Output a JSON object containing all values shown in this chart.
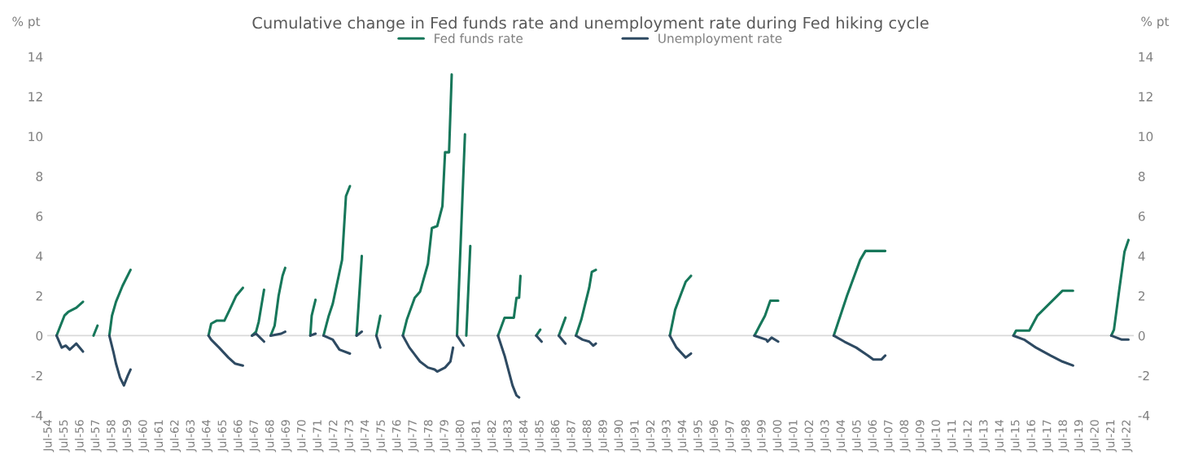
{
  "chart_data": {
    "type": "line",
    "title": "Cumulative change in Fed funds rate and unemployment rate during Fed hiking cycle",
    "ylabel": "% pt",
    "y2label": "% pt",
    "ylim": [
      -4,
      14
    ],
    "yticks": [
      -4,
      -2,
      0,
      2,
      4,
      6,
      8,
      10,
      12,
      14
    ],
    "y2lim": [
      -4,
      14
    ],
    "y2ticks": [
      -4,
      -2,
      0,
      2,
      4,
      6,
      8,
      10,
      12,
      14
    ],
    "xlim": [
      "1954-06",
      "2022-12"
    ],
    "xticks": [
      {
        "value": "1954-07",
        "label": "Jul-54"
      },
      {
        "value": "1955-07",
        "label": "Jul-55"
      },
      {
        "value": "1956-07",
        "label": "Jul-56"
      },
      {
        "value": "1957-07",
        "label": "Jul-57"
      },
      {
        "value": "1958-07",
        "label": "Jul-58"
      },
      {
        "value": "1959-07",
        "label": "Jul-59"
      },
      {
        "value": "1960-07",
        "label": "Jul-60"
      },
      {
        "value": "1961-07",
        "label": "Jul-61"
      },
      {
        "value": "1962-07",
        "label": "Jul-62"
      },
      {
        "value": "1963-07",
        "label": "Jul-63"
      },
      {
        "value": "1964-07",
        "label": "Jul-64"
      },
      {
        "value": "1965-07",
        "label": "Jul-65"
      },
      {
        "value": "1966-07",
        "label": "Jul-66"
      },
      {
        "value": "1967-07",
        "label": "Jul-67"
      },
      {
        "value": "1968-07",
        "label": "Jul-68"
      },
      {
        "value": "1969-07",
        "label": "Jul-69"
      },
      {
        "value": "1970-07",
        "label": "Jul-70"
      },
      {
        "value": "1971-07",
        "label": "Jul-71"
      },
      {
        "value": "1972-07",
        "label": "Jul-72"
      },
      {
        "value": "1973-07",
        "label": "Jul-73"
      },
      {
        "value": "1974-07",
        "label": "Jul-74"
      },
      {
        "value": "1975-07",
        "label": "Jul-75"
      },
      {
        "value": "1976-07",
        "label": "Jul-76"
      },
      {
        "value": "1977-07",
        "label": "Jul-77"
      },
      {
        "value": "1978-07",
        "label": "Jul-78"
      },
      {
        "value": "1979-07",
        "label": "Jul-79"
      },
      {
        "value": "1980-07",
        "label": "Jul-80"
      },
      {
        "value": "1981-07",
        "label": "Jul-81"
      },
      {
        "value": "1982-07",
        "label": "Jul-82"
      },
      {
        "value": "1983-07",
        "label": "Jul-83"
      },
      {
        "value": "1984-07",
        "label": "Jul-84"
      },
      {
        "value": "1985-07",
        "label": "Jul-85"
      },
      {
        "value": "1986-07",
        "label": "Jul-86"
      },
      {
        "value": "1987-07",
        "label": "Jul-87"
      },
      {
        "value": "1988-07",
        "label": "Jul-88"
      },
      {
        "value": "1989-07",
        "label": "Jul-89"
      },
      {
        "value": "1990-07",
        "label": "Jul-90"
      },
      {
        "value": "1991-07",
        "label": "Jul-91"
      },
      {
        "value": "1992-07",
        "label": "Jul-92"
      },
      {
        "value": "1993-07",
        "label": "Jul-93"
      },
      {
        "value": "1994-07",
        "label": "Jul-94"
      },
      {
        "value": "1995-07",
        "label": "Jul-95"
      },
      {
        "value": "1996-07",
        "label": "Jul-96"
      },
      {
        "value": "1997-07",
        "label": "Jul-97"
      },
      {
        "value": "1998-07",
        "label": "Jul-98"
      },
      {
        "value": "1999-07",
        "label": "Jul-99"
      },
      {
        "value": "2000-07",
        "label": "Jul-00"
      },
      {
        "value": "2001-07",
        "label": "Jul-01"
      },
      {
        "value": "2002-07",
        "label": "Jul-02"
      },
      {
        "value": "2003-07",
        "label": "Jul-03"
      },
      {
        "value": "2004-07",
        "label": "Jul-04"
      },
      {
        "value": "2005-07",
        "label": "Jul-05"
      },
      {
        "value": "2006-07",
        "label": "Jul-06"
      },
      {
        "value": "2007-07",
        "label": "Jul-07"
      },
      {
        "value": "2008-07",
        "label": "Jul-08"
      },
      {
        "value": "2009-07",
        "label": "Jul-09"
      },
      {
        "value": "2010-07",
        "label": "Jul-10"
      },
      {
        "value": "2011-07",
        "label": "Jul-11"
      },
      {
        "value": "2012-07",
        "label": "Jul-12"
      },
      {
        "value": "2013-07",
        "label": "Jul-13"
      },
      {
        "value": "2014-07",
        "label": "Jul-14"
      },
      {
        "value": "2015-07",
        "label": "Jul-15"
      },
      {
        "value": "2016-07",
        "label": "Jul-16"
      },
      {
        "value": "2017-07",
        "label": "Jul-17"
      },
      {
        "value": "2018-07",
        "label": "Jul-18"
      },
      {
        "value": "2019-07",
        "label": "Jul-19"
      },
      {
        "value": "2020-07",
        "label": "Jul-20"
      },
      {
        "value": "2021-07",
        "label": "Jul-21"
      },
      {
        "value": "2022-07",
        "label": "Jul-22"
      }
    ],
    "ref_lines": [
      {
        "axis": "y",
        "value": 0,
        "color": "#d9d9d9"
      }
    ],
    "legend": "top",
    "grid": false,
    "marker": "none",
    "line_style": "solid",
    "series": [
      {
        "name": "Fed funds rate",
        "color": "#17775a",
        "x": [
          "1955-01",
          "1955-07",
          "1955-10",
          "1956-04",
          "1956-09",
          "1957-05",
          "1957-08",
          "1958-05",
          "1958-07",
          "1958-10",
          "1959-03",
          "1959-09",
          "1964-08",
          "1964-10",
          "1965-02",
          "1965-08",
          "1965-12",
          "1966-05",
          "1966-10",
          "1967-05",
          "1967-08",
          "1967-10",
          "1968-02",
          "1968-07",
          "1968-10",
          "1969-01",
          "1969-04",
          "1969-06",
          "1971-01",
          "1971-02",
          "1971-05",
          "1971-11",
          "1972-03",
          "1972-06",
          "1973-01",
          "1973-04",
          "1973-07",
          "1973-12",
          "1974-04",
          "1975-03",
          "1975-06",
          "1976-11",
          "1977-02",
          "1977-08",
          "1977-12",
          "1978-06",
          "1978-09",
          "1979-01",
          "1979-05",
          "1979-07",
          "1979-10",
          "1979-12",
          "1980-04",
          "1980-10",
          "1980-11",
          "1981-02",
          "1982-11",
          "1983-04",
          "1983-11",
          "1984-01",
          "1984-03",
          "1984-04",
          "1985-04",
          "1985-07",
          "1986-09",
          "1987-02",
          "1987-10",
          "1988-02",
          "1988-05",
          "1988-08",
          "1988-10",
          "1989-01",
          "1993-09",
          "1994-01",
          "1994-05",
          "1994-09",
          "1995-01",
          "1999-01",
          "1999-05",
          "1999-09",
          "2000-01",
          "2000-07",
          "2004-01",
          "2004-11",
          "2005-09",
          "2006-01",
          "2007-04",
          "2015-05",
          "2015-07",
          "2016-05",
          "2016-11",
          "2018-06",
          "2019-02",
          "2021-07",
          "2021-09",
          "2022-01",
          "2022-05",
          "2022-08"
        ],
        "values": [
          0,
          1.0,
          1.2,
          1.4,
          1.7,
          0,
          0.5,
          0,
          1.0,
          1.7,
          2.5,
          3.3,
          0,
          0.6,
          0.75,
          0.75,
          1.3,
          2.0,
          2.4,
          0,
          0.2,
          0.7,
          2.3,
          0,
          0.5,
          2.0,
          3.0,
          3.4,
          0,
          1.0,
          1.8,
          0,
          1.0,
          1.6,
          3.8,
          7.0,
          7.5,
          0,
          4.0,
          0,
          1.0,
          0,
          0.8,
          1.9,
          2.2,
          3.6,
          5.4,
          5.5,
          6.5,
          9.2,
          9.2,
          13.1,
          0,
          10.1,
          0,
          4.5,
          0,
          0.9,
          0.9,
          1.9,
          1.9,
          3.0,
          0,
          0.3,
          0,
          0.9,
          0,
          0.8,
          1.6,
          2.4,
          3.2,
          3.3,
          0,
          1.3,
          2.0,
          2.7,
          3.0,
          0,
          0.5,
          1.0,
          1.75,
          1.75,
          0,
          2.0,
          3.8,
          4.25,
          4.25,
          0,
          0.25,
          0.25,
          1.0,
          2.25,
          2.25,
          0,
          0.3,
          2.3,
          4.2,
          4.8
        ]
      },
      {
        "name": "Unemployment rate",
        "color": "#2e4a62",
        "x": [
          "1955-01",
          "1955-05",
          "1955-08",
          "1955-11",
          "1956-04",
          "1956-09",
          "1958-05",
          "1958-08",
          "1958-10",
          "1959-01",
          "1959-04",
          "1959-07",
          "1959-09",
          "1964-08",
          "1964-10",
          "1965-04",
          "1965-11",
          "1966-04",
          "1966-10",
          "1967-05",
          "1967-08",
          "1967-11",
          "1968-02",
          "1968-07",
          "1969-03",
          "1969-06",
          "1971-01",
          "1971-05",
          "1971-11",
          "1972-06",
          "1972-11",
          "1973-07",
          "1973-12",
          "1974-04",
          "1975-03",
          "1975-06",
          "1976-11",
          "1977-04",
          "1977-12",
          "1978-06",
          "1978-11",
          "1979-01",
          "1979-07",
          "1979-11",
          "1980-01",
          "1980-04",
          "1980-09",
          "1982-11",
          "1983-04",
          "1983-10",
          "1984-01",
          "1984-03",
          "1985-04",
          "1985-08",
          "1986-09",
          "1987-02",
          "1987-10",
          "1988-03",
          "1988-08",
          "1988-11",
          "1989-01",
          "1993-09",
          "1994-02",
          "1994-09",
          "1995-01",
          "1999-01",
          "1999-10",
          "1999-11",
          "2000-02",
          "2000-07",
          "2004-01",
          "2004-09",
          "2005-06",
          "2006-03",
          "2006-07",
          "2007-01",
          "2007-04",
          "2015-05",
          "2016-01",
          "2016-10",
          "2017-09",
          "2018-06",
          "2019-02",
          "2021-07",
          "2022-03",
          "2022-08"
        ],
        "values": [
          0,
          -0.6,
          -0.5,
          -0.7,
          -0.4,
          -0.8,
          0,
          -0.8,
          -1.4,
          -2.1,
          -2.5,
          -2.0,
          -1.7,
          0,
          -0.2,
          -0.6,
          -1.1,
          -1.4,
          -1.5,
          0,
          0.1,
          -0.1,
          -0.3,
          0,
          0.1,
          0.2,
          0,
          0.1,
          0,
          -0.2,
          -0.7,
          -0.9,
          0,
          0.2,
          0,
          -0.6,
          0,
          -0.6,
          -1.3,
          -1.6,
          -1.7,
          -1.8,
          -1.6,
          -1.3,
          -0.6,
          0,
          -0.5,
          0,
          -1.0,
          -2.5,
          -3.0,
          -3.1,
          0,
          -0.3,
          0,
          -0.4,
          0,
          -0.2,
          -0.3,
          -0.5,
          -0.4,
          0,
          -0.6,
          -1.1,
          -0.9,
          0,
          -0.2,
          -0.3,
          -0.1,
          -0.3,
          0,
          -0.3,
          -0.6,
          -1.0,
          -1.2,
          -1.2,
          -1.0,
          0,
          -0.2,
          -0.6,
          -1.0,
          -1.3,
          -1.5,
          0,
          -0.2,
          -0.2
        ]
      }
    ]
  }
}
